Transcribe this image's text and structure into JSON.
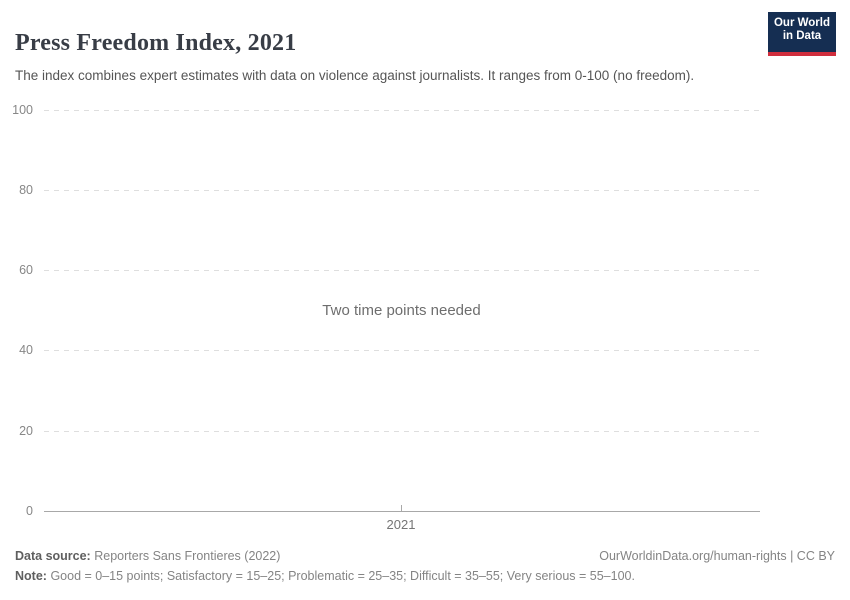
{
  "header": {
    "title": "Press Freedom Index, 2021",
    "subtitle": "The index combines expert estimates with data on violence against journalists. It ranges from 0-100 (no freedom).",
    "logo": {
      "line1": "Our World",
      "line2": "in Data"
    }
  },
  "chart_data": {
    "type": "line",
    "title": "Press Freedom Index, 2021",
    "subtitle": "The index combines expert estimates with data on violence against journalists. It ranges from 0-100 (no freedom).",
    "series": [],
    "message": "Two time points needed",
    "x_tick_labels": [
      "2021"
    ],
    "y_ticks": [
      0,
      20,
      40,
      60,
      80,
      100
    ],
    "y_tick_labels": [
      "0",
      "20",
      "40",
      "60",
      "80",
      "100"
    ],
    "ylim": [
      0,
      100
    ],
    "xlabel": "",
    "ylabel": "",
    "grid": "horizontal dashed gridlines, solid bottom axis",
    "legend": "none",
    "annotation": "empty plot area — no data series drawn, placeholder message shown in center"
  },
  "footer": {
    "datasource_label": "Data source:",
    "datasource_value": "Reporters Sans Frontieres (2022)",
    "url_text": "OurWorldinData.org/human-rights | CC BY",
    "note_label": "Note:",
    "note_value": "Good = 0–15 points; Satisfactory = 15–25; Problematic = 25–35; Difficult = 35–55; Very serious = 55–100."
  },
  "colors": {
    "title_text": "#383d46",
    "subtitle_text": "#555555",
    "logo_bg": "#152e52",
    "logo_accent": "#d02e3d",
    "gridline": "#dedede",
    "axis": "#a8a8a8",
    "tick_text": "#878787",
    "footer_text": "#848484",
    "message_text": "#6e6e6e"
  }
}
